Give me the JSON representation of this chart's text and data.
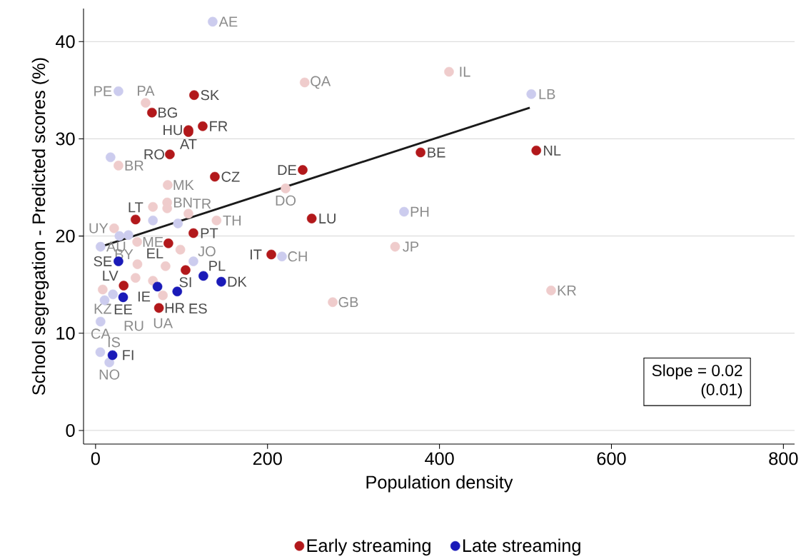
{
  "chart_data": {
    "type": "scatter",
    "xlabel": "Population density",
    "ylabel": "School segregation - Predicted scores (%)",
    "xlim": [
      -14,
      813
    ],
    "ylim": [
      -1.4,
      43.4
    ],
    "xticks": [
      0,
      200,
      400,
      600,
      800
    ],
    "yticks": [
      0,
      10,
      20,
      30,
      40
    ],
    "grid": "y",
    "legend": "bottom",
    "marker": "circle",
    "annotations": [
      "Slope = 0.02",
      "(0.01)"
    ],
    "series": [
      {
        "color": "#efcccc",
        "x": [
          243.2,
          411.1,
          58.2,
          26.6,
          83.9,
          221,
          83.3,
          66.7,
          83.3,
          108,
          140.7,
          21.6,
          48.4,
          98.6,
          48.7,
          81.4,
          46.5,
          66.7,
          8.3,
          78.3,
          348.4,
          275.8,
          529.8
        ],
        "values": [
          35.8,
          36.9,
          33.7,
          27.25,
          25.25,
          24.9,
          23.45,
          23.0,
          22.85,
          22.3,
          21.6,
          20.8,
          19.4,
          18.6,
          17.1,
          16.9,
          15.7,
          15.4,
          14.5,
          13.9,
          18.9,
          13.2,
          14.4
        ],
        "value_labels": [
          "QA",
          "IL",
          "PA",
          "BR",
          "MK",
          "DO",
          "BN",
          null,
          null,
          "TR",
          "TH",
          "UY",
          "ME",
          null,
          "BY",
          null,
          null,
          null,
          "KZ",
          "UA",
          "JP",
          "GB",
          "KR"
        ]
      },
      {
        "color": "#ccccee",
        "x": [
          136.2,
          26.6,
          506.8,
          358.8,
          216.8,
          17.4,
          5.8,
          27.8,
          38.2,
          66.7,
          95.8,
          113.8,
          20.2,
          10.5,
          5.8,
          5.5,
          16
        ],
        "values": [
          42.05,
          34.9,
          34.6,
          22.5,
          17.9,
          28.1,
          18.9,
          20.0,
          20.1,
          21.6,
          21.3,
          17.4,
          14.0,
          13.4,
          11.2,
          8.05,
          7.0
        ],
        "value_labels": [
          "AE",
          "PE",
          "LB",
          "PH",
          "CH",
          null,
          "AU",
          null,
          null,
          null,
          null,
          "JO",
          null,
          "RU",
          "CA",
          "IS",
          "NO"
        ]
      },
      {
        "name": "Early streaming",
        "color": "#b2181b",
        "x": [
          114.6,
          65.6,
          124.6,
          108,
          108,
          86.4,
          138.7,
          240.9,
          378,
          512.6,
          251.4,
          204.4,
          46.5,
          113.8,
          84.7,
          104.7,
          32.7,
          73.7
        ],
        "values": [
          34.5,
          32.7,
          31.3,
          30.9,
          30.7,
          28.4,
          26.1,
          26.8,
          28.6,
          28.8,
          21.8,
          18.1,
          21.7,
          20.3,
          19.25,
          16.5,
          14.9,
          12.6
        ],
        "value_labels": [
          "SK",
          "BG",
          "FR",
          "HU",
          "AT",
          "RO",
          "CZ",
          "DE",
          "BE",
          "NL",
          "LU",
          "IT",
          "LT",
          "PT",
          "EL",
          "SI",
          "LV",
          "HR"
        ]
      },
      {
        "name": "Late streaming",
        "color": "#1a1ab8",
        "x": [
          26.6,
          125.4,
          146.2,
          72,
          95,
          32.1,
          19.7
        ],
        "values": [
          17.4,
          15.9,
          15.3,
          14.8,
          14.3,
          13.7,
          7.75
        ],
        "value_labels": [
          "SE",
          "PL",
          "DK",
          "IE",
          "ES",
          "EE",
          "FI"
        ]
      },
      {
        "type": "line",
        "marker": "none",
        "color": "#1a1a1a",
        "x": [
          5.8,
          505
        ],
        "values": [
          18.9,
          33.2
        ]
      }
    ]
  }
}
